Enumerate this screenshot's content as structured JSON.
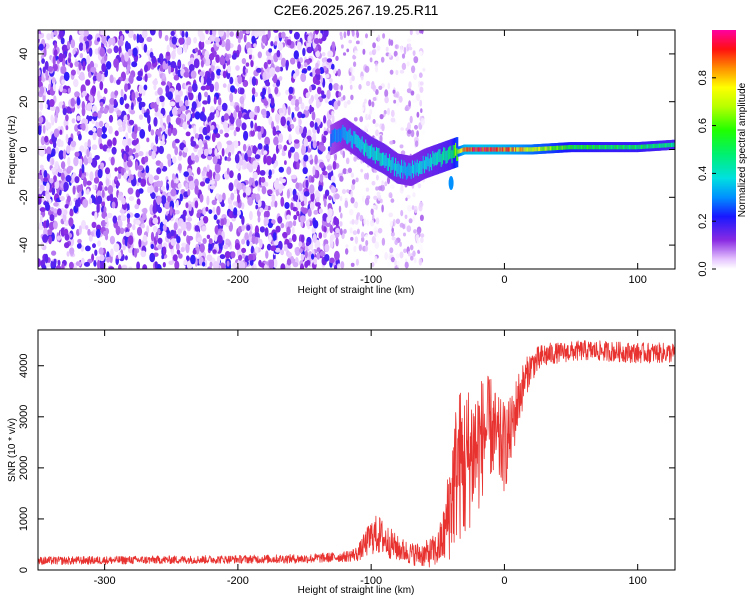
{
  "title": "C2E6.2025.267.19.25.R11",
  "colors": {
    "snr_line": "#e8322f",
    "axis": "#000000",
    "background": "#ffffff"
  },
  "chart_data": [
    {
      "type": "heatmap",
      "name": "spectrogram",
      "xlabel": "Height of straight line (km)",
      "ylabel": "Frequency (Hz)",
      "xlim": [
        -350,
        128
      ],
      "ylim": [
        -50,
        50
      ],
      "xticks": [
        -300,
        -200,
        -100,
        0,
        100
      ],
      "xtick_labels": [
        "-300",
        "-200",
        "-100",
        "0",
        "100"
      ],
      "yticks": [
        -40,
        -20,
        0,
        20,
        40
      ],
      "ytick_labels": [
        "-40",
        "-20",
        "0",
        "20",
        "40"
      ],
      "colorbar": {
        "label": "Normalized spectral amplitude",
        "range": [
          0.0,
          1.0
        ],
        "ticks": [
          0.0,
          0.2,
          0.4,
          0.6,
          0.8
        ],
        "tick_labels": [
          "0.0",
          "0.2",
          "0.4",
          "0.6",
          "0.8"
        ],
        "colormap": "rainbow"
      },
      "noise_region": {
        "x": [
          -350,
          -125
        ],
        "freq": [
          -50,
          50
        ],
        "amplitude": [
          0.02,
          0.2
        ]
      },
      "sparse_noise_region": {
        "x": [
          -125,
          -60
        ],
        "freq": [
          -50,
          50
        ],
        "amplitude": [
          0.0,
          0.1
        ]
      },
      "signal_track": {
        "height_km": [
          -130,
          -120,
          -110,
          -100,
          -90,
          -80,
          -70,
          -60,
          -50,
          -40,
          -30,
          -20,
          -10,
          0,
          20,
          50,
          80,
          100,
          128
        ],
        "freq_hz": [
          4,
          7,
          3,
          -1,
          -4,
          -8,
          -9,
          -6,
          -4,
          -2,
          0,
          0,
          0,
          0,
          0,
          1,
          1,
          1,
          2
        ],
        "amplitude": [
          0.3,
          0.35,
          0.4,
          0.42,
          0.42,
          0.4,
          0.38,
          0.4,
          0.45,
          0.5,
          0.95,
          1.0,
          0.98,
          0.95,
          0.8,
          0.6,
          0.55,
          0.55,
          0.5
        ]
      }
    },
    {
      "type": "line",
      "name": "snr",
      "xlabel": "Height of straight line (km)",
      "ylabel": "SNR (10 * v/v)",
      "xlim": [
        -350,
        128
      ],
      "ylim": [
        0,
        4700
      ],
      "xticks": [
        -300,
        -200,
        -100,
        0,
        100
      ],
      "xtick_labels": [
        "-300",
        "-200",
        "-100",
        "0",
        "100"
      ],
      "yticks": [
        0,
        1000,
        2000,
        3000,
        4000
      ],
      "ytick_labels": [
        "0",
        "1000",
        "2000",
        "3000",
        "4000"
      ],
      "series": [
        {
          "name": "SNR",
          "x": [
            -350,
            -300,
            -250,
            -200,
            -150,
            -120,
            -110,
            -100,
            -95,
            -90,
            -80,
            -70,
            -60,
            -50,
            -45,
            -40,
            -35,
            -30,
            -25,
            -20,
            -15,
            -10,
            -5,
            0,
            5,
            10,
            15,
            20,
            30,
            40,
            60,
            80,
            100,
            128
          ],
          "values": [
            180,
            190,
            200,
            210,
            220,
            260,
            320,
            650,
            700,
            600,
            420,
            320,
            300,
            400,
            700,
            1400,
            2100,
            2000,
            2300,
            2400,
            2700,
            2800,
            2500,
            2400,
            2700,
            3300,
            3700,
            4000,
            4200,
            4250,
            4300,
            4280,
            4250,
            4250
          ],
          "noise_amplitude": [
            80,
            80,
            80,
            80,
            90,
            100,
            150,
            350,
            400,
            350,
            250,
            220,
            250,
            350,
            600,
            1200,
            1500,
            1600,
            1400,
            1400,
            1100,
            1000,
            900,
            900,
            700,
            600,
            400,
            300,
            250,
            200,
            200,
            200,
            200,
            200
          ]
        }
      ]
    }
  ]
}
